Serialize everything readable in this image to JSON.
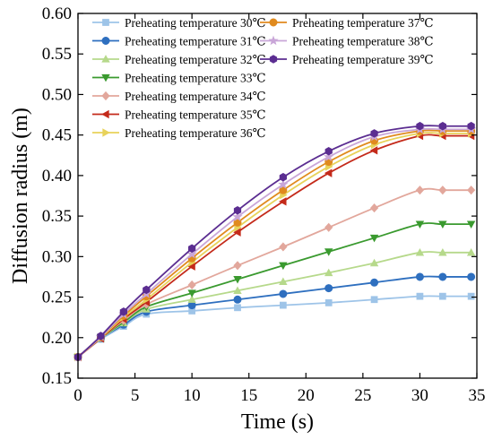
{
  "chart_data": {
    "type": "line",
    "title": "",
    "xlabel": "Time (s)",
    "ylabel": "Diffusion radius (m)",
    "xlim": [
      0,
      35
    ],
    "ylim": [
      0.15,
      0.6
    ],
    "xticks": [
      0,
      5,
      10,
      15,
      20,
      25,
      30,
      35
    ],
    "yticks": [
      0.15,
      0.2,
      0.25,
      0.3,
      0.35,
      0.4,
      0.45,
      0.5,
      0.55,
      0.6
    ],
    "xtick_labels": [
      "0",
      "5",
      "10",
      "15",
      "20",
      "25",
      "30",
      "35"
    ],
    "ytick_labels": [
      "0.15",
      "0.20",
      "0.25",
      "0.30",
      "0.35",
      "0.40",
      "0.45",
      "0.50",
      "0.55",
      "0.60"
    ],
    "x": [
      0,
      2,
      4,
      6,
      10,
      14,
      18,
      22,
      26,
      30,
      32,
      34.5
    ],
    "grid": false,
    "legend_position": "top",
    "series": [
      {
        "name": "Preheating temperature 30℃",
        "color": "#9ec4e8",
        "marker": "square",
        "values": [
          0.176,
          0.198,
          0.214,
          0.229,
          0.233,
          0.237,
          0.24,
          0.243,
          0.247,
          0.251,
          0.251,
          0.251
        ]
      },
      {
        "name": "Preheating temperature 31℃",
        "color": "#2e6fbf",
        "marker": "circle",
        "values": [
          0.176,
          0.199,
          0.216,
          0.232,
          0.24,
          0.247,
          0.254,
          0.261,
          0.268,
          0.275,
          0.275,
          0.275
        ]
      },
      {
        "name": "Preheating temperature 32℃",
        "color": "#b6d98b",
        "marker": "triangle-up",
        "values": [
          0.176,
          0.199,
          0.218,
          0.235,
          0.247,
          0.258,
          0.269,
          0.28,
          0.292,
          0.305,
          0.305,
          0.305
        ]
      },
      {
        "name": "Preheating temperature 33℃",
        "color": "#3a9a2f",
        "marker": "triangle-down",
        "values": [
          0.176,
          0.2,
          0.219,
          0.238,
          0.255,
          0.272,
          0.289,
          0.306,
          0.323,
          0.34,
          0.34,
          0.34
        ]
      },
      {
        "name": "Preheating temperature 34℃",
        "color": "#e2a79c",
        "marker": "diamond",
        "values": [
          0.176,
          0.2,
          0.221,
          0.241,
          0.265,
          0.289,
          0.312,
          0.336,
          0.36,
          0.382,
          0.382,
          0.382
        ]
      },
      {
        "name": "Preheating temperature 35℃",
        "color": "#c42a1a",
        "marker": "triangle-left",
        "values": [
          0.176,
          0.199,
          0.223,
          0.244,
          0.288,
          0.33,
          0.368,
          0.403,
          0.431,
          0.449,
          0.449,
          0.449
        ]
      },
      {
        "name": "Preheating temperature 36℃",
        "color": "#e8d25a",
        "marker": "triangle-right",
        "values": [
          0.176,
          0.2,
          0.225,
          0.247,
          0.293,
          0.336,
          0.376,
          0.411,
          0.438,
          0.452,
          0.452,
          0.452
        ]
      },
      {
        "name": "Preheating temperature 37℃",
        "color": "#e08a1e",
        "marker": "circle",
        "values": [
          0.176,
          0.201,
          0.227,
          0.251,
          0.298,
          0.342,
          0.382,
          0.417,
          0.443,
          0.455,
          0.455,
          0.455
        ]
      },
      {
        "name": "Preheating temperature 38℃",
        "color": "#c9a6d8",
        "marker": "star",
        "values": [
          0.176,
          0.201,
          0.229,
          0.254,
          0.303,
          0.349,
          0.389,
          0.423,
          0.448,
          0.457,
          0.457,
          0.457
        ]
      },
      {
        "name": "Preheating temperature 39℃",
        "color": "#5b2d91",
        "marker": "hexagon",
        "values": [
          0.176,
          0.202,
          0.232,
          0.259,
          0.31,
          0.357,
          0.398,
          0.43,
          0.452,
          0.461,
          0.461,
          0.461
        ]
      }
    ]
  }
}
